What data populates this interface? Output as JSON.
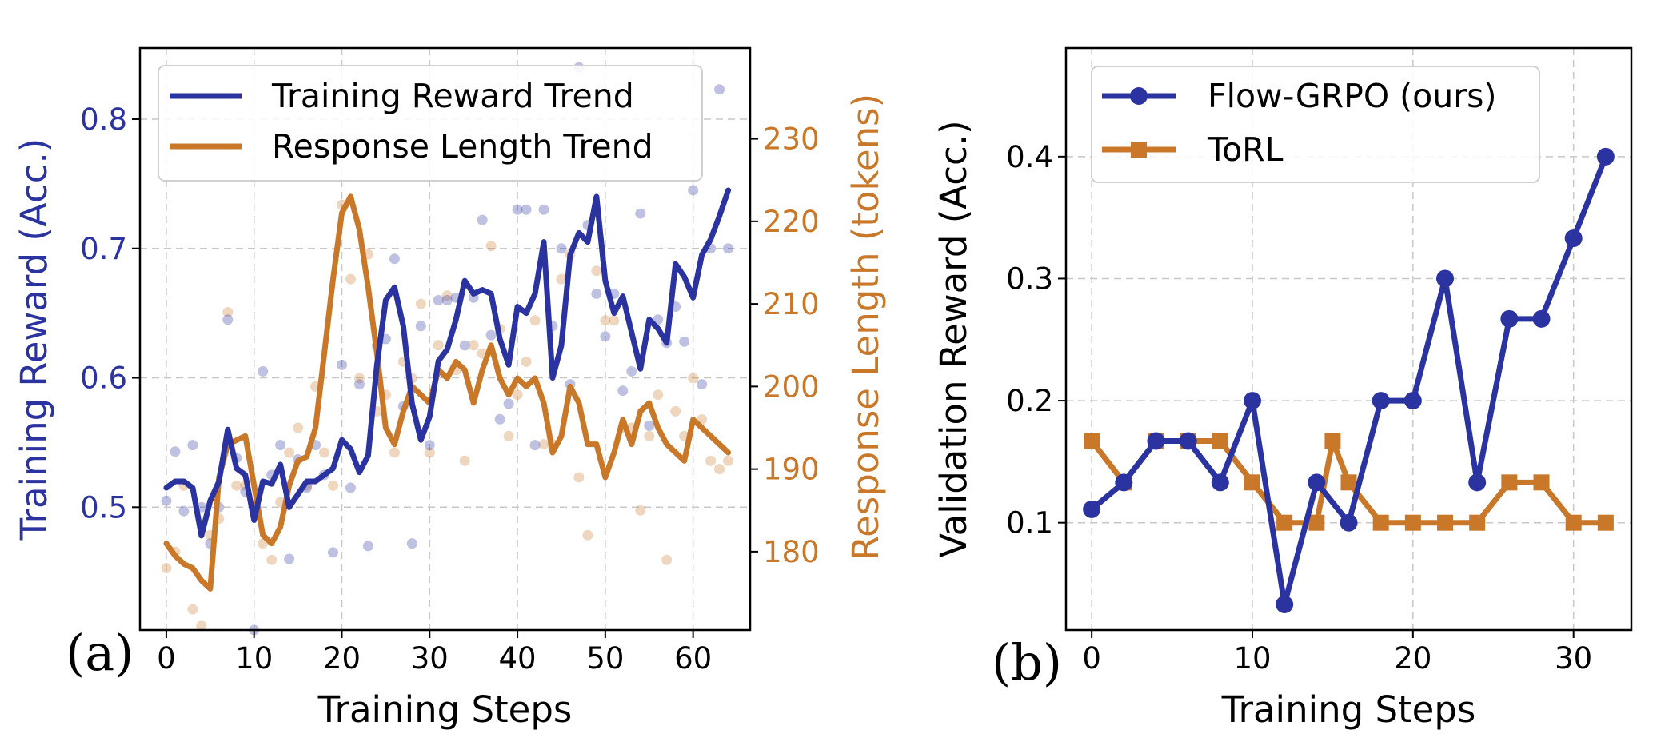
{
  "colors": {
    "blue": "#2b33a0",
    "orange": "#c9782a",
    "grid": "#c8c8c8"
  },
  "chart_data": [
    {
      "panel": "(a)",
      "type": "line",
      "xlabel": "Training Steps",
      "ylabel_left": "Training Reward (Acc.)",
      "ylabel_right": "Response Length (tokens)",
      "xlim": [
        -3,
        66.5
      ],
      "ylim_left": [
        0.405,
        0.855
      ],
      "ylim_right": [
        170.5,
        241
      ],
      "x_ticks": [
        0,
        10,
        20,
        30,
        40,
        50,
        60
      ],
      "y_ticks_left": [
        0.5,
        0.6,
        0.7,
        0.8
      ],
      "y_ticks_right": [
        180,
        190,
        200,
        210,
        220,
        230
      ],
      "grid": true,
      "legend_position": "upper-left",
      "legend": [
        "Training Reward Trend",
        "Response Length Trend"
      ],
      "series": [
        {
          "name": "Training Reward Trend",
          "axis": "left",
          "x": [
            0,
            1,
            2,
            3,
            4,
            5,
            6,
            7,
            8,
            9,
            10,
            11,
            12,
            13,
            14,
            15,
            16,
            17,
            18,
            19,
            20,
            21,
            22,
            23,
            24,
            25,
            26,
            27,
            28,
            29,
            30,
            31,
            32,
            33,
            34,
            35,
            36,
            37,
            38,
            39,
            40,
            41,
            42,
            43,
            44,
            45,
            46,
            47,
            48,
            49,
            50,
            51,
            52,
            53,
            54,
            55,
            56,
            57,
            58,
            59,
            60,
            61,
            62,
            63,
            64
          ],
          "y": [
            0.515,
            0.52,
            0.52,
            0.515,
            0.478,
            0.505,
            0.52,
            0.56,
            0.53,
            0.525,
            0.49,
            0.52,
            0.518,
            0.533,
            0.5,
            0.51,
            0.52,
            0.52,
            0.525,
            0.53,
            0.552,
            0.545,
            0.527,
            0.54,
            0.61,
            0.66,
            0.67,
            0.64,
            0.58,
            0.552,
            0.57,
            0.613,
            0.622,
            0.645,
            0.675,
            0.665,
            0.668,
            0.665,
            0.63,
            0.61,
            0.655,
            0.65,
            0.665,
            0.705,
            0.6,
            0.625,
            0.695,
            0.712,
            0.705,
            0.74,
            0.675,
            0.65,
            0.663,
            0.635,
            0.607,
            0.645,
            0.638,
            0.627,
            0.688,
            0.678,
            0.662,
            0.695,
            0.707,
            0.725,
            0.745
          ]
        },
        {
          "name": "Response Length Trend",
          "axis": "right",
          "x": [
            0,
            1,
            2,
            3,
            4,
            5,
            6,
            7,
            8,
            9,
            10,
            11,
            12,
            13,
            14,
            15,
            16,
            17,
            18,
            19,
            20,
            21,
            22,
            23,
            24,
            25,
            26,
            27,
            28,
            29,
            30,
            31,
            32,
            33,
            34,
            35,
            36,
            37,
            38,
            39,
            40,
            41,
            42,
            43,
            44,
            45,
            46,
            47,
            48,
            49,
            50,
            51,
            52,
            53,
            54,
            55,
            56,
            57,
            58,
            59,
            60,
            61,
            62,
            63,
            64
          ],
          "y": [
            181,
            179.5,
            178.5,
            178,
            176.5,
            175.5,
            189,
            193,
            193.5,
            194,
            188,
            182,
            181,
            183,
            188,
            191,
            191.5,
            195,
            204,
            213,
            221,
            223,
            219,
            212,
            204,
            195,
            193,
            197,
            200,
            199,
            198,
            202,
            201,
            203,
            202,
            198,
            202,
            205,
            201,
            199,
            201,
            200,
            201,
            198,
            192,
            194,
            200,
            198,
            193,
            193,
            189,
            192,
            196,
            193,
            197,
            198,
            195,
            193,
            192,
            191,
            196,
            195,
            194,
            193,
            192
          ]
        },
        {
          "name": "",
          "kind": "scatter-faint",
          "axis": "left",
          "x": [
            0,
            1,
            2,
            3,
            4,
            5,
            6,
            7,
            8,
            9,
            10,
            11,
            12,
            13,
            14,
            15,
            16,
            17,
            18,
            19,
            20,
            21,
            22,
            23,
            24,
            25,
            26,
            27,
            28,
            29,
            30,
            31,
            32,
            33,
            34,
            35,
            36,
            37,
            38,
            39,
            40,
            41,
            42,
            43,
            44,
            45,
            46,
            47,
            48,
            49,
            50,
            51,
            52,
            53,
            54,
            55,
            56,
            57,
            58,
            59,
            60,
            61,
            62,
            63,
            64
          ],
          "y": [
            0.505,
            0.543,
            0.497,
            0.548,
            0.5,
            0.472,
            0.5,
            0.645,
            0.538,
            0.512,
            0.405,
            0.605,
            0.525,
            0.548,
            0.46,
            0.537,
            0.515,
            0.548,
            0.525,
            0.465,
            0.61,
            0.515,
            0.595,
            0.47,
            0.625,
            0.63,
            0.692,
            0.578,
            0.472,
            0.64,
            0.548,
            0.66,
            0.66,
            0.662,
            0.625,
            0.662,
            0.722,
            0.633,
            0.568,
            0.58,
            0.73,
            0.73,
            0.548,
            0.73,
            0.64,
            0.7,
            0.595,
            0.84,
            0.718,
            0.665,
            0.632,
            0.665,
            0.59,
            0.605,
            0.727,
            0.563,
            0.645,
            0.627,
            0.655,
            0.628,
            0.745,
            0.595,
            0.7,
            0.823,
            0.7
          ]
        },
        {
          "name": "",
          "kind": "scatter-faint",
          "axis": "right",
          "x": [
            0,
            1,
            2,
            3,
            4,
            5,
            6,
            7,
            8,
            9,
            10,
            11,
            12,
            13,
            14,
            15,
            16,
            17,
            18,
            19,
            20,
            21,
            22,
            23,
            24,
            25,
            26,
            27,
            28,
            29,
            30,
            31,
            32,
            33,
            34,
            35,
            36,
            37,
            38,
            39,
            40,
            41,
            42,
            43,
            44,
            45,
            46,
            47,
            48,
            49,
            50,
            51,
            52,
            53,
            54,
            55,
            56,
            57,
            58,
            59,
            60,
            61,
            62,
            63,
            64
          ],
          "y": [
            178,
            180,
            188,
            173,
            171,
            182,
            184,
            209,
            188,
            188,
            185,
            181,
            179,
            186,
            192,
            195,
            188,
            200,
            192,
            188,
            222,
            213,
            201,
            216,
            197,
            199,
            192,
            203,
            201,
            210,
            192,
            205,
            211,
            202,
            191,
            205,
            204,
            217,
            207,
            194,
            199,
            203,
            208,
            193,
            193,
            213,
            216,
            189,
            182,
            214,
            208,
            208,
            195,
            195,
            185,
            194,
            199,
            179,
            197,
            194,
            201,
            196,
            191,
            190,
            191
          ]
        }
      ]
    },
    {
      "panel": "(b)",
      "type": "line",
      "xlabel": "Training Steps",
      "ylabel": "Validation Reward (Acc.)",
      "xlim": [
        -1.6,
        33.6
      ],
      "ylim": [
        0.012,
        0.489
      ],
      "x_ticks": [
        0,
        10,
        20,
        30
      ],
      "y_ticks": [
        0.1,
        0.2,
        0.3,
        0.4
      ],
      "grid": true,
      "legend_position": "upper-left",
      "legend": [
        "Flow-GRPO (ours)",
        "ToRL"
      ],
      "series": [
        {
          "name": "Flow-GRPO (ours)",
          "marker": "circle",
          "x": [
            0,
            2,
            4,
            6,
            8,
            10,
            12,
            14,
            16,
            18,
            20,
            22,
            24,
            26,
            28,
            30,
            32
          ],
          "y": [
            0.111,
            0.133,
            0.167,
            0.167,
            0.133,
            0.2,
            0.033,
            0.133,
            0.1,
            0.2,
            0.2,
            0.3,
            0.133,
            0.267,
            0.267,
            0.333,
            0.4
          ]
        },
        {
          "name": "ToRL",
          "marker": "square",
          "x": [
            0,
            2,
            4,
            6,
            8,
            10,
            12,
            14,
            15,
            16,
            18,
            20,
            22,
            24,
            26,
            28,
            30,
            32
          ],
          "y": [
            0.167,
            0.133,
            0.167,
            0.167,
            0.167,
            0.133,
            0.1,
            0.1,
            0.167,
            0.133,
            0.1,
            0.1,
            0.1,
            0.1,
            0.133,
            0.133,
            0.1,
            0.1
          ]
        }
      ]
    }
  ]
}
